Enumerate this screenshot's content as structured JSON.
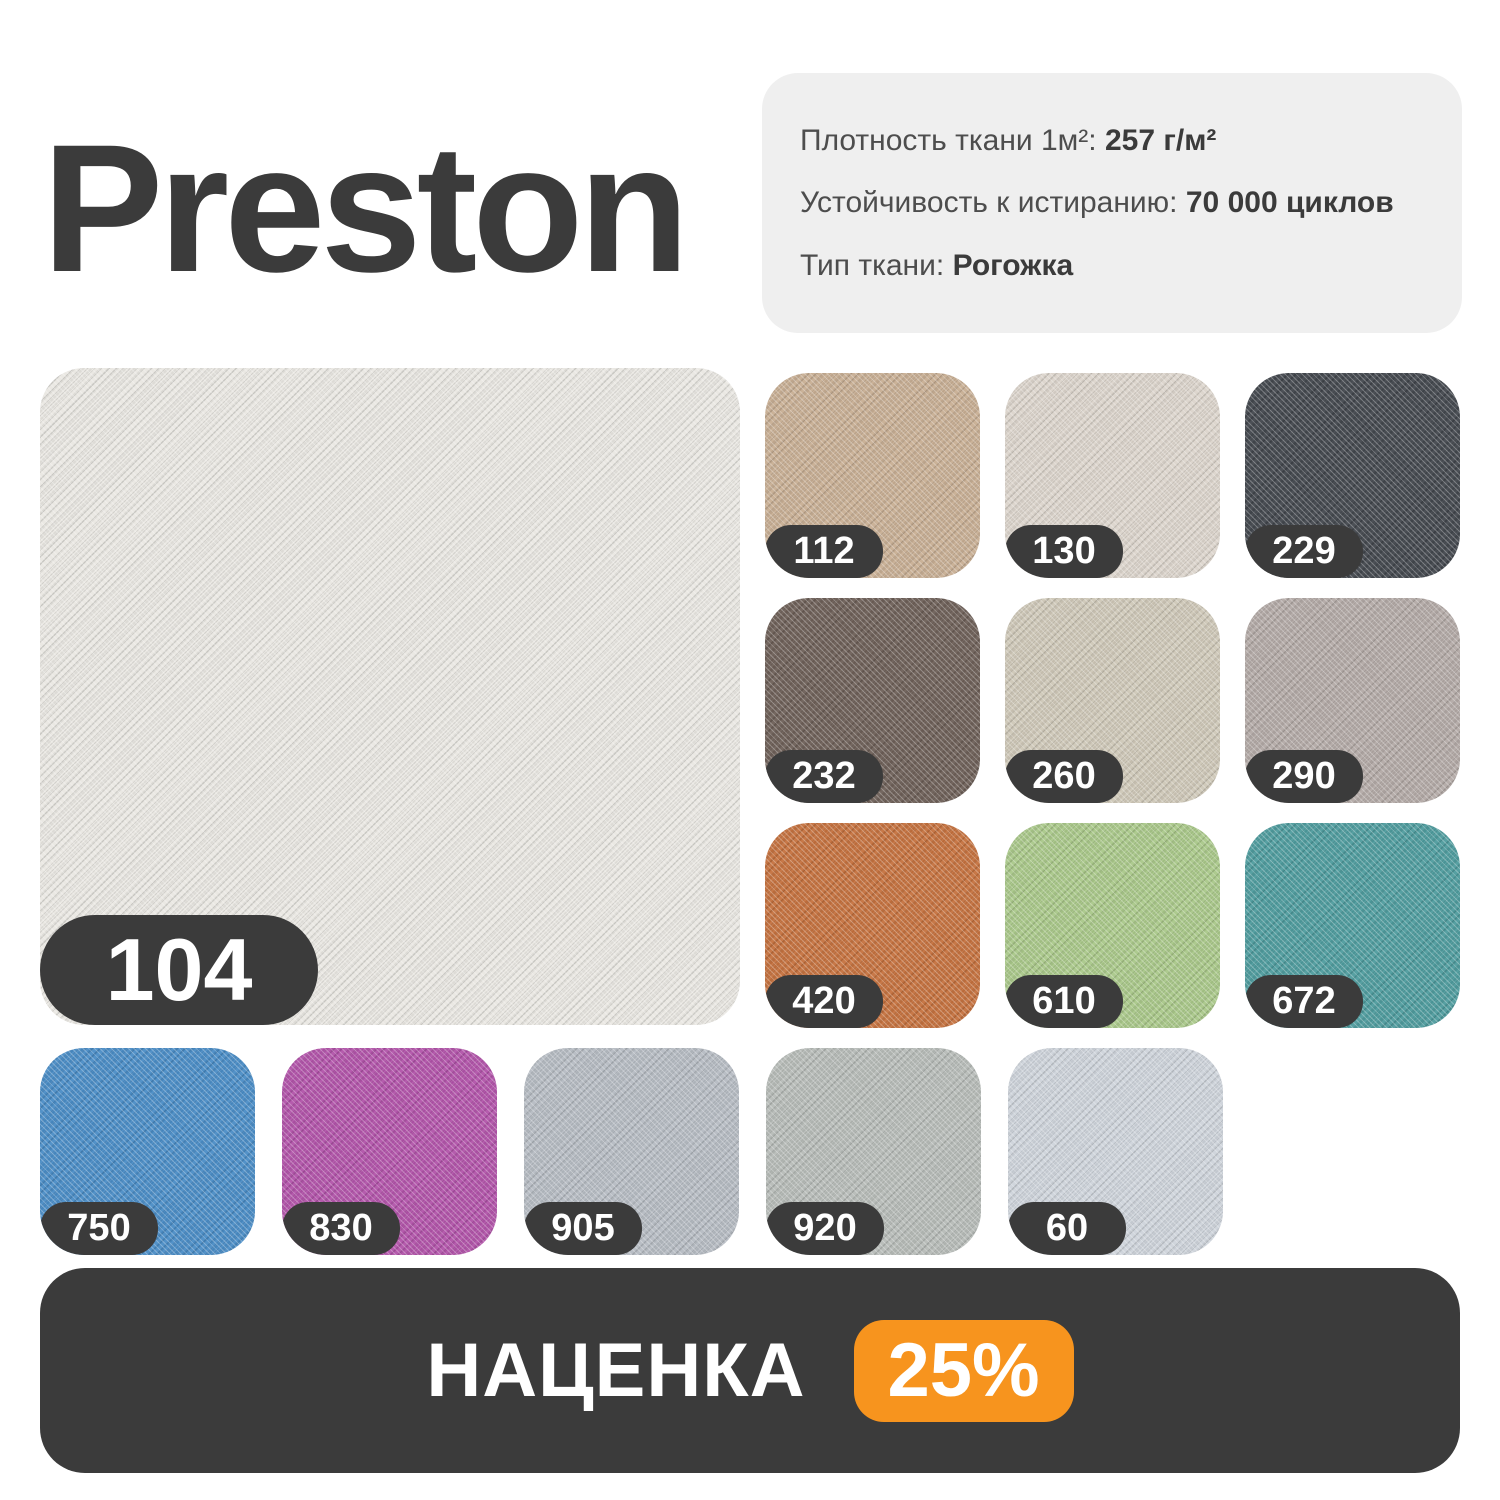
{
  "title": "Preston",
  "specs": [
    {
      "label": "Плотность ткани 1м²:",
      "value": "257 г/м²"
    },
    {
      "label": "Устойчивость к истиранию:",
      "value": "70 000 циклов"
    },
    {
      "label": "Тип ткани:",
      "value": "Рогожка"
    }
  ],
  "main_swatch": {
    "code": "104",
    "color": "#e9e7e2"
  },
  "palette": [
    {
      "code": "112",
      "color": "#c7ae93"
    },
    {
      "code": "130",
      "color": "#dbd4cb"
    },
    {
      "code": "229",
      "color": "#42474d"
    },
    {
      "code": "232",
      "color": "#6d5f57"
    },
    {
      "code": "260",
      "color": "#cec7b7"
    },
    {
      "code": "290",
      "color": "#b2a9a5"
    },
    {
      "code": "420",
      "color": "#c4713e"
    },
    {
      "code": "610",
      "color": "#a9c789"
    },
    {
      "code": "672",
      "color": "#4e9b9d"
    }
  ],
  "bottom_palette": [
    {
      "code": "750",
      "color": "#4a8cc5"
    },
    {
      "code": "830",
      "color": "#b153a9"
    },
    {
      "code": "905",
      "color": "#b5bbc2"
    },
    {
      "code": "920",
      "color": "#b6bbb7"
    },
    {
      "code": "60",
      "color": "#cdd3da"
    }
  ],
  "footer": {
    "label": "НАЦЕНКА",
    "badge": "25%",
    "badge_color": "#f7941e",
    "bar_color": "#3b3b3b"
  },
  "colors": {
    "accent_dark": "#3b3b3b",
    "card_bg": "#efefef"
  }
}
